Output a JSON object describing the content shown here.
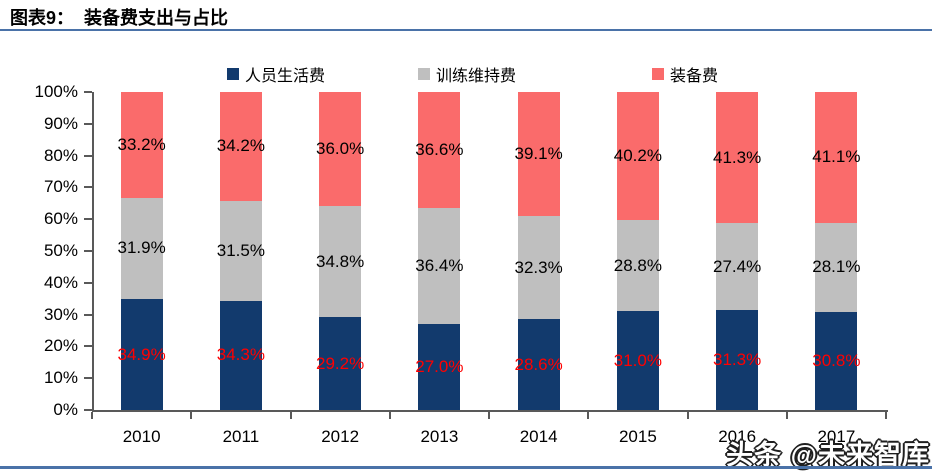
{
  "header": {
    "title": "图表9：  装备费支出与占比"
  },
  "watermark": {
    "text": "头条 @未来智库"
  },
  "chart_data": {
    "type": "bar",
    "stacked": true,
    "percent": true,
    "title": "装备费支出与占比",
    "categories": [
      "2010",
      "2011",
      "2012",
      "2013",
      "2014",
      "2015",
      "2016",
      "2017"
    ],
    "series": [
      {
        "name": "人员生活费",
        "color": "#123a6d",
        "label_color": "#ff0000",
        "values": [
          34.9,
          34.3,
          29.2,
          27.0,
          28.6,
          31.0,
          31.3,
          30.8
        ]
      },
      {
        "name": "训练维持费",
        "color": "#bfbfbf",
        "label_color": "#000000",
        "values": [
          31.9,
          31.5,
          34.8,
          36.4,
          32.3,
          28.8,
          27.4,
          28.1
        ]
      },
      {
        "name": "装备费",
        "color": "#fa6b6b",
        "label_color": "#000000",
        "values": [
          33.2,
          34.2,
          36.0,
          36.6,
          39.1,
          40.2,
          41.3,
          41.1
        ]
      }
    ],
    "y_ticks": [
      "100%",
      "90%",
      "80%",
      "70%",
      "60%",
      "50%",
      "40%",
      "30%",
      "20%",
      "10%",
      "0%"
    ],
    "ylim": [
      0,
      100
    ],
    "grid": false,
    "legend_position": "top"
  },
  "colors": {
    "rule_blue": "#4a72a8",
    "axis_gray": "#595959",
    "label_red": "#ff0000"
  }
}
